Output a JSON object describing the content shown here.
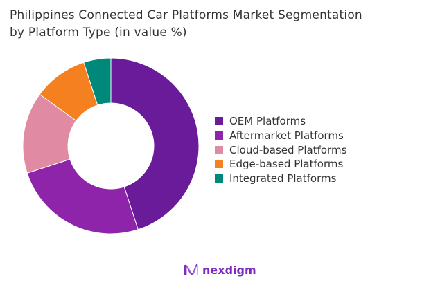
{
  "chart_data": {
    "type": "pie",
    "title": "Philippines Connected Car Platforms Market Segmentation by Platform Type (in value %)",
    "title_lines": [
      "Philippines Connected Car Platforms Market Segmentation",
      "by Platform Type (in value %)"
    ],
    "categories": [
      "OEM Platforms",
      "Aftermarket Platforms",
      "Cloud-based Platforms",
      "Edge-based Platforms",
      "Integrated Platforms"
    ],
    "values": [
      45,
      25,
      15,
      10,
      5
    ],
    "colors": [
      "#6a1b9a",
      "#8e24aa",
      "#e08aa3",
      "#f5801f",
      "#00897b"
    ],
    "donut": true,
    "legend_position": "right"
  },
  "logo": {
    "text": "nexdigm"
  }
}
